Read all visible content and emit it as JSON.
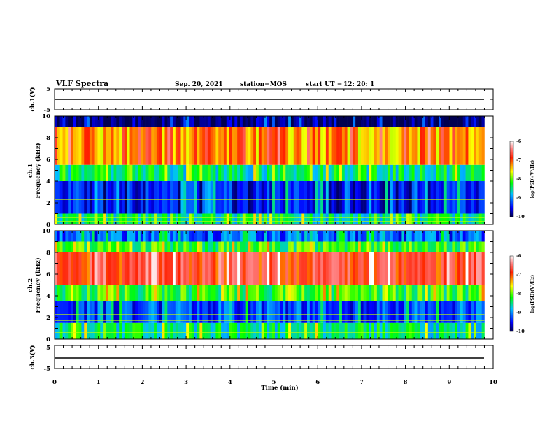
{
  "header": {
    "title": "VLF Spectra",
    "date": "Sep. 20, 2021",
    "station": "station=MOS",
    "start_ut_label": "start  UT =",
    "start_ut_value": "12: 20: 1"
  },
  "chart_data": [
    {
      "type": "line",
      "panel": "ch1-voltage",
      "ylabel": "ch.1(V)",
      "ylim": [
        -5,
        5
      ],
      "yticks": [
        "5",
        "-5"
      ],
      "xlim": [
        0,
        10
      ],
      "description_level": 0,
      "series": [
        {
          "x": [
            0,
            9.8
          ],
          "values": [
            0,
            0
          ]
        }
      ]
    },
    {
      "type": "heatmap",
      "panel": "ch1-spectrogram",
      "ylabel_top": "ch.1",
      "ylabel_bottom": "Frequency (kHz)",
      "ylim": [
        0,
        10
      ],
      "yticks": [
        "0",
        "2",
        "4",
        "6",
        "8",
        "10"
      ],
      "xlim": [
        0,
        10
      ],
      "data_end_min": 9.8,
      "colorbar": {
        "label": "log(PSD)(V²/Hz)",
        "range": [
          -10,
          -6
        ],
        "ticks": [
          "-6",
          "-7",
          "-8",
          "-9",
          "-10"
        ]
      },
      "bands_khz": [
        {
          "from": 0,
          "to": 1,
          "level": -8.5
        },
        {
          "from": 1,
          "to": 4,
          "level": -9.5
        },
        {
          "from": 4,
          "to": 5.5,
          "level": -8.5
        },
        {
          "from": 5.5,
          "to": 9,
          "level": -7.3
        },
        {
          "from": 9,
          "to": 10,
          "level": -10
        }
      ]
    },
    {
      "type": "heatmap",
      "panel": "ch2-spectrogram",
      "ylabel_top": "ch.2",
      "ylabel_bottom": "Frequency (kHz)",
      "ylim": [
        0,
        10
      ],
      "yticks": [
        "0",
        "2",
        "4",
        "6",
        "8",
        "10"
      ],
      "xlim": [
        0,
        10
      ],
      "data_end_min": 9.8,
      "colorbar": {
        "label": "log(PSD)(V²/Hz)",
        "range": [
          -10,
          -6
        ],
        "ticks": [
          "-6",
          "-7",
          "-8",
          "-9",
          "-10"
        ]
      },
      "bands_khz": [
        {
          "from": 0,
          "to": 1.5,
          "level": -8.5
        },
        {
          "from": 1.5,
          "to": 3.5,
          "level": -9.3
        },
        {
          "from": 3.5,
          "to": 5,
          "level": -8.2
        },
        {
          "from": 5,
          "to": 8,
          "level": -6.8
        },
        {
          "from": 8,
          "to": 9,
          "level": -8.2
        },
        {
          "from": 9,
          "to": 10,
          "level": -9.2
        }
      ]
    },
    {
      "type": "line",
      "panel": "ch3-voltage",
      "ylabel": "ch.3(V)",
      "ylim": [
        -5,
        5
      ],
      "yticks": [
        "5",
        "-5"
      ],
      "xlim": [
        0,
        10
      ],
      "xlabel": "Time (min)",
      "xticks": [
        "0",
        "1",
        "2",
        "3",
        "4",
        "5",
        "6",
        "7",
        "8",
        "9",
        "10"
      ],
      "series": [
        {
          "x": [
            0,
            9.8
          ],
          "values": [
            0,
            0
          ]
        }
      ]
    }
  ]
}
